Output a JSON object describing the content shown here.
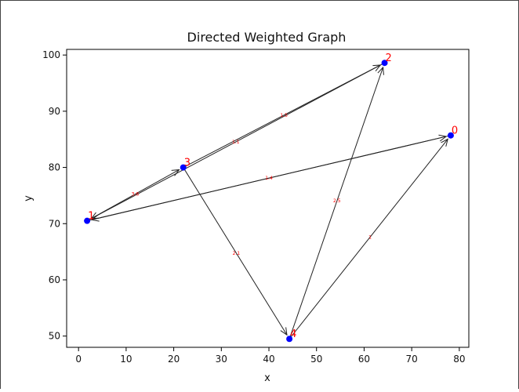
{
  "chart_data": {
    "type": "scatter",
    "title": "Directed Weighted Graph",
    "xlabel": "x",
    "ylabel": "y",
    "xlim": [
      -2.5,
      82.0
    ],
    "ylim": [
      48.0,
      101.0
    ],
    "xticks": [
      0,
      10,
      20,
      30,
      40,
      50,
      60,
      70,
      80
    ],
    "yticks": [
      50,
      60,
      70,
      80,
      90,
      100
    ],
    "grid": false,
    "node_color": "#0000ff",
    "label_color": "#ff0000",
    "edge_color": "#222222",
    "nodes": [
      {
        "id": "0",
        "x": 78.2,
        "y": 85.7
      },
      {
        "id": "1",
        "x": 1.8,
        "y": 70.5
      },
      {
        "id": "2",
        "x": 64.3,
        "y": 98.6
      },
      {
        "id": "3",
        "x": 22.0,
        "y": 80.0
      },
      {
        "id": "4",
        "x": 44.3,
        "y": 49.5
      }
    ],
    "edges": [
      {
        "from": "1",
        "to": "0",
        "weight": "1.4"
      },
      {
        "from": "0",
        "to": "1",
        "weight": ""
      },
      {
        "from": "1",
        "to": "3",
        "weight": "3.6"
      },
      {
        "from": "3",
        "to": "2",
        "weight": "1.5"
      },
      {
        "from": "2",
        "to": "1",
        "weight": "1.1"
      },
      {
        "from": "3",
        "to": "4",
        "weight": "2.1"
      },
      {
        "from": "4",
        "to": "2",
        "weight": "2.5"
      },
      {
        "from": "4",
        "to": "0",
        "weight": "1"
      }
    ]
  }
}
